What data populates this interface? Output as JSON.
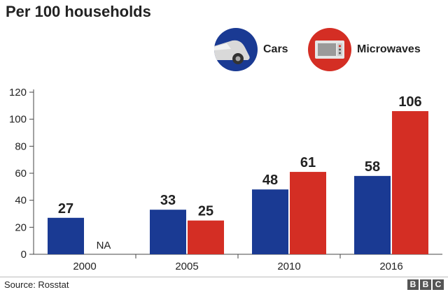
{
  "header": {
    "title": "Per 100 households"
  },
  "legend": {
    "items": [
      {
        "label": "Cars",
        "icon": "car-icon",
        "color": "#1a3a93"
      },
      {
        "label": "Microwaves",
        "icon": "microwave-icon",
        "color": "#d42e24"
      }
    ]
  },
  "chart_data": {
    "type": "bar",
    "categories": [
      "2000",
      "2005",
      "2010",
      "2016"
    ],
    "series": [
      {
        "name": "Cars",
        "values": [
          27,
          33,
          48,
          58
        ],
        "color": "#1a3a93",
        "labels": [
          "27",
          "33",
          "48",
          "58"
        ]
      },
      {
        "name": "Microwaves",
        "values": [
          null,
          25,
          61,
          106
        ],
        "color": "#d42e24",
        "labels": [
          "NA",
          "25",
          "61",
          "106"
        ]
      }
    ],
    "ylim": [
      0,
      120
    ],
    "yticks": [
      "0",
      "20",
      "40",
      "60",
      "80",
      "100",
      "120"
    ],
    "title": "Per 100 households",
    "xlabel": "",
    "ylabel": ""
  },
  "footer": {
    "source": "Source: Rosstat",
    "brand": [
      "B",
      "B",
      "C"
    ]
  }
}
